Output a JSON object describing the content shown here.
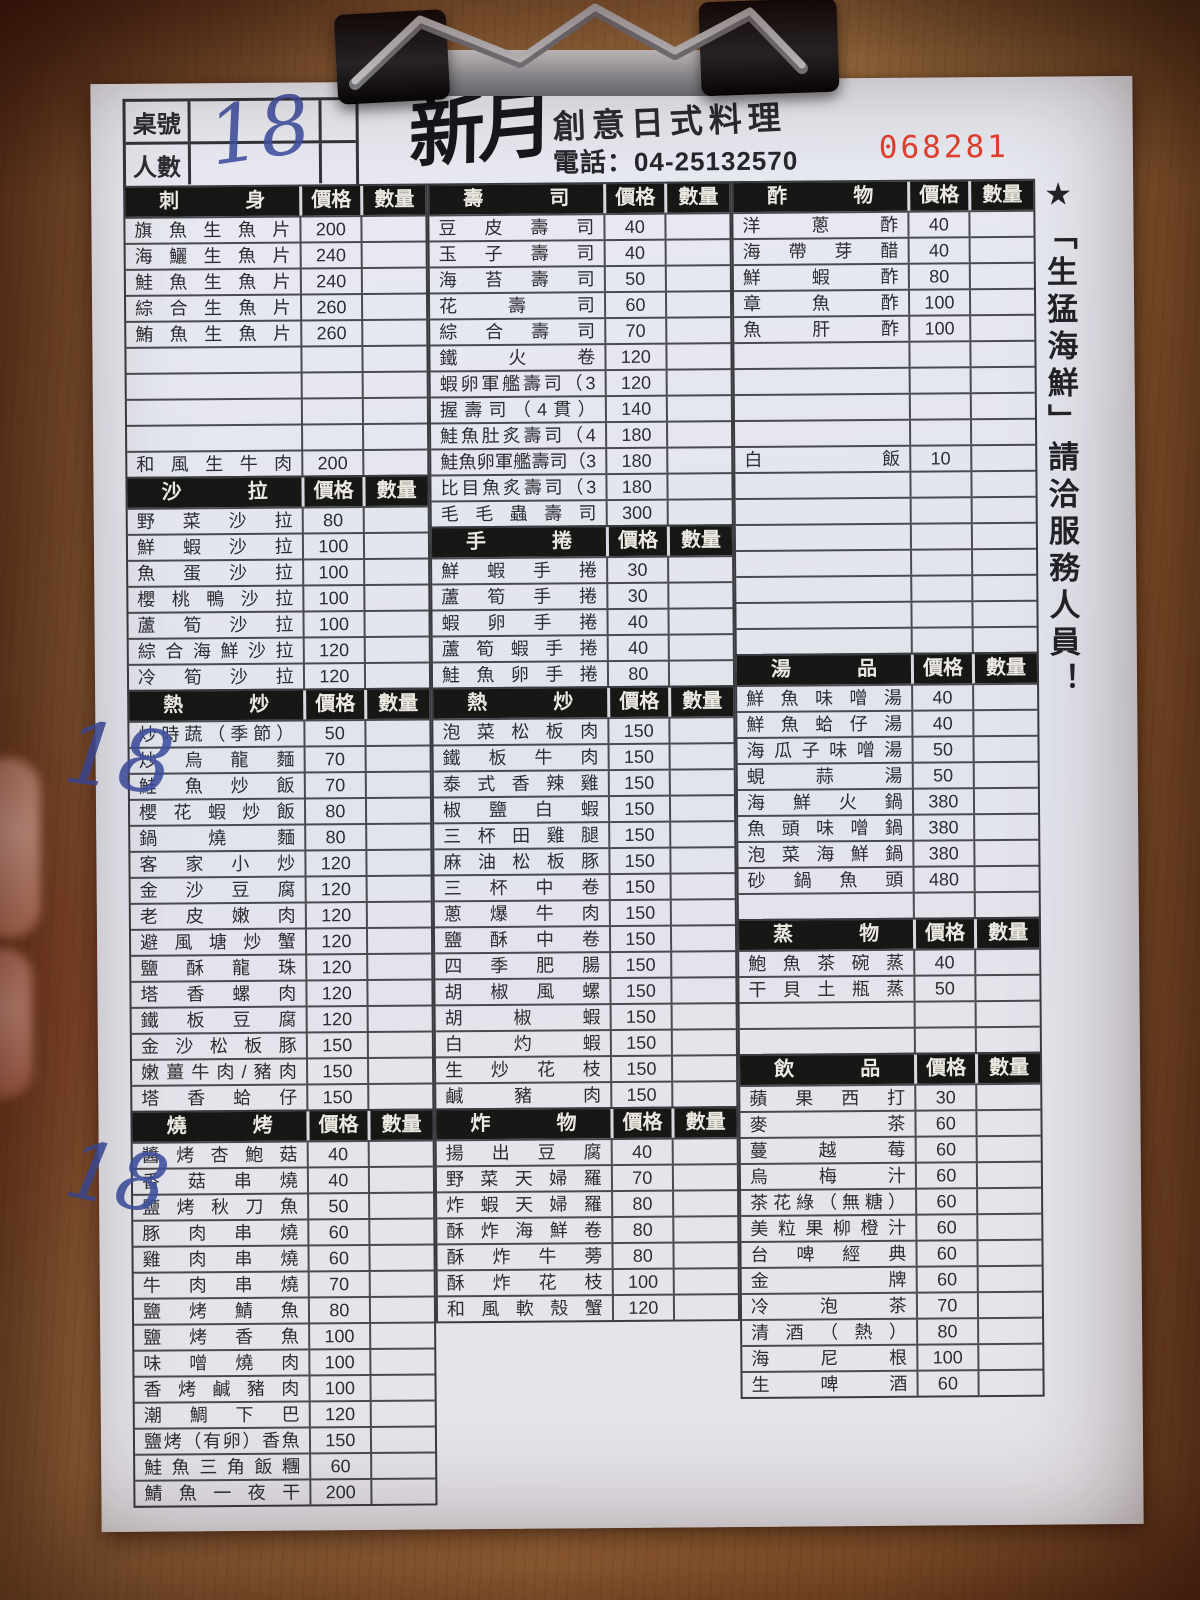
{
  "header": {
    "table_no_label": "桌號",
    "people_label": "人數",
    "handwritten_table_no": "18",
    "brand": "新月",
    "brand_subtitle": "創意日式料理",
    "phone": "電話：04-25132570",
    "serial": "068281"
  },
  "side_note": "★「生猛海鮮」請洽服務人員！",
  "margin_notes": [
    "18",
    "18"
  ],
  "menu": {
    "price_label": "價格",
    "qty_label": "數量",
    "columns": [
      {
        "sections": [
          {
            "title": "刺身",
            "items": [
              {
                "name": "旗魚生魚片",
                "price": "200"
              },
              {
                "name": "海鱺生魚片",
                "price": "240"
              },
              {
                "name": "鮭魚生魚片",
                "price": "240"
              },
              {
                "name": "綜合生魚片",
                "price": "260"
              },
              {
                "name": "鮪魚生魚片",
                "price": "260"
              },
              {
                "name": "",
                "price": ""
              },
              {
                "name": "",
                "price": ""
              },
              {
                "name": "",
                "price": ""
              },
              {
                "name": "",
                "price": ""
              },
              {
                "name": "和風生牛肉",
                "price": "200"
              }
            ]
          },
          {
            "title": "沙拉",
            "items": [
              {
                "name": "野菜沙拉",
                "price": "80"
              },
              {
                "name": "鮮蝦沙拉",
                "price": "100"
              },
              {
                "name": "魚蛋沙拉",
                "price": "100"
              },
              {
                "name": "櫻桃鴨沙拉",
                "price": "100"
              },
              {
                "name": "蘆筍沙拉",
                "price": "100"
              },
              {
                "name": "綜合海鮮沙拉",
                "price": "120"
              },
              {
                "name": "冷筍沙拉",
                "price": "120"
              }
            ]
          },
          {
            "title": "熱炒",
            "items": [
              {
                "name": "炒時蔬（季節）",
                "price": "50"
              },
              {
                "name": "炒烏龍麵",
                "price": "70"
              },
              {
                "name": "鮭魚炒飯",
                "price": "70"
              },
              {
                "name": "櫻花蝦炒飯",
                "price": "80"
              },
              {
                "name": "鍋燒麵",
                "price": "80"
              },
              {
                "name": "客家小炒",
                "price": "120"
              },
              {
                "name": "金沙豆腐",
                "price": "120"
              },
              {
                "name": "老皮嫩肉",
                "price": "120"
              },
              {
                "name": "避風塘炒蟹",
                "price": "120"
              },
              {
                "name": "鹽酥龍珠",
                "price": "120"
              },
              {
                "name": "塔香螺肉",
                "price": "120"
              },
              {
                "name": "鐵板豆腐",
                "price": "120"
              },
              {
                "name": "金沙松板豚",
                "price": "150"
              },
              {
                "name": "嫩薑牛肉/豬肉",
                "price": "150"
              },
              {
                "name": "塔香蛤仔",
                "price": "150"
              }
            ]
          },
          {
            "title": "燒烤",
            "items": [
              {
                "name": "醬烤杏鮑菇",
                "price": "40"
              },
              {
                "name": "香菇串燒",
                "price": "40"
              },
              {
                "name": "鹽烤秋刀魚",
                "price": "50"
              },
              {
                "name": "豚肉串燒",
                "price": "60"
              },
              {
                "name": "雞肉串燒",
                "price": "60"
              },
              {
                "name": "牛肉串燒",
                "price": "70"
              },
              {
                "name": "鹽烤鯖魚",
                "price": "80"
              },
              {
                "name": "鹽烤香魚",
                "price": "100"
              },
              {
                "name": "味噌燒肉",
                "price": "100"
              },
              {
                "name": "香烤鹹豬肉",
                "price": "100"
              },
              {
                "name": "潮鯛下巴",
                "price": "120"
              },
              {
                "name": "鹽烤（有卵）香魚",
                "price": "150"
              },
              {
                "name": "鮭魚三角飯糰",
                "price": "60"
              },
              {
                "name": "鯖魚一夜干",
                "price": "200"
              }
            ]
          }
        ]
      },
      {
        "sections": [
          {
            "title": "壽司",
            "items": [
              {
                "name": "豆皮壽司",
                "price": "40"
              },
              {
                "name": "玉子壽司",
                "price": "40"
              },
              {
                "name": "海苔壽司",
                "price": "50"
              },
              {
                "name": "花壽司",
                "price": "60"
              },
              {
                "name": "綜合壽司",
                "price": "70"
              },
              {
                "name": "鐵火卷",
                "price": "120"
              },
              {
                "name": "蝦卵軍艦壽司（3貫）",
                "price": "120"
              },
              {
                "name": "握壽司（4貫）",
                "price": "140"
              },
              {
                "name": "鮭魚肚炙壽司（4貫）",
                "price": "180"
              },
              {
                "name": "鮭魚卵軍艦壽司（3貫）",
                "price": "180"
              },
              {
                "name": "比目魚炙壽司（3貫）",
                "price": "180"
              },
              {
                "name": "毛毛蟲壽司",
                "price": "300"
              }
            ]
          },
          {
            "title": "手捲",
            "items": [
              {
                "name": "鮮蝦手捲",
                "price": "30"
              },
              {
                "name": "蘆筍手捲",
                "price": "30"
              },
              {
                "name": "蝦卵手捲",
                "price": "40"
              },
              {
                "name": "蘆筍蝦手捲",
                "price": "40"
              },
              {
                "name": "鮭魚卵手捲",
                "price": "80"
              }
            ]
          },
          {
            "title": "熱炒",
            "items": [
              {
                "name": "泡菜松板肉",
                "price": "150"
              },
              {
                "name": "鐵板牛肉",
                "price": "150"
              },
              {
                "name": "泰式香辣雞",
                "price": "150"
              },
              {
                "name": "椒鹽白蝦",
                "price": "150"
              },
              {
                "name": "三杯田雞腿",
                "price": "150"
              },
              {
                "name": "麻油松板豚",
                "price": "150"
              },
              {
                "name": "三杯中卷",
                "price": "150"
              },
              {
                "name": "蔥爆牛肉",
                "price": "150"
              },
              {
                "name": "鹽酥中卷",
                "price": "150"
              },
              {
                "name": "四季肥腸",
                "price": "150"
              },
              {
                "name": "胡椒風螺",
                "price": "150"
              },
              {
                "name": "胡椒蝦",
                "price": "150"
              },
              {
                "name": "白灼蝦",
                "price": "150"
              },
              {
                "name": "生炒花枝",
                "price": "150"
              },
              {
                "name": "鹹豬肉",
                "price": "150"
              }
            ]
          },
          {
            "title": "炸物",
            "items": [
              {
                "name": "揚出豆腐",
                "price": "40"
              },
              {
                "name": "野菜天婦羅",
                "price": "70"
              },
              {
                "name": "炸蝦天婦羅",
                "price": "80"
              },
              {
                "name": "酥炸海鮮卷",
                "price": "80"
              },
              {
                "name": "酥炸牛蒡",
                "price": "80"
              },
              {
                "name": "酥炸花枝",
                "price": "100"
              },
              {
                "name": "和風軟殼蟹",
                "price": "120"
              }
            ]
          }
        ]
      },
      {
        "sections": [
          {
            "title": "酢物",
            "items": [
              {
                "name": "洋蔥酢",
                "price": "40"
              },
              {
                "name": "海帶芽醋",
                "price": "40"
              },
              {
                "name": "鮮蝦酢",
                "price": "80"
              },
              {
                "name": "章魚酢",
                "price": "100"
              },
              {
                "name": "魚肝酢",
                "price": "100"
              },
              {
                "name": "",
                "price": ""
              },
              {
                "name": "",
                "price": ""
              },
              {
                "name": "",
                "price": ""
              },
              {
                "name": "",
                "price": ""
              },
              {
                "name": "白飯",
                "price": "10"
              },
              {
                "name": "",
                "price": ""
              },
              {
                "name": "",
                "price": ""
              },
              {
                "name": "",
                "price": ""
              },
              {
                "name": "",
                "price": ""
              },
              {
                "name": "",
                "price": ""
              },
              {
                "name": "",
                "price": ""
              },
              {
                "name": "",
                "price": ""
              }
            ]
          },
          {
            "title": "湯品",
            "items": [
              {
                "name": "鮮魚味噌湯",
                "price": "40"
              },
              {
                "name": "鮮魚蛤仔湯",
                "price": "40"
              },
              {
                "name": "海瓜子味噌湯",
                "price": "50"
              },
              {
                "name": "蜆蒜湯",
                "price": "50"
              },
              {
                "name": "海鮮火鍋",
                "price": "380"
              },
              {
                "name": "魚頭味噌鍋",
                "price": "380"
              },
              {
                "name": "泡菜海鮮鍋",
                "price": "380"
              },
              {
                "name": "砂鍋魚頭",
                "price": "480"
              },
              {
                "name": "",
                "price": ""
              }
            ]
          },
          {
            "title": "蒸物",
            "items": [
              {
                "name": "鮑魚茶碗蒸",
                "price": "40"
              },
              {
                "name": "干貝土瓶蒸",
                "price": "50"
              },
              {
                "name": "",
                "price": ""
              },
              {
                "name": "",
                "price": ""
              }
            ]
          },
          {
            "title": "飲品",
            "items": [
              {
                "name": "蘋果西打",
                "price": "30"
              },
              {
                "name": "麥茶",
                "price": "60"
              },
              {
                "name": "蔓越莓",
                "price": "60"
              },
              {
                "name": "烏梅汁",
                "price": "60"
              },
              {
                "name": "茶花綠（無糖）",
                "price": "60"
              },
              {
                "name": "美粒果柳橙汁",
                "price": "60"
              },
              {
                "name": "台啤經典",
                "price": "60"
              },
              {
                "name": "金牌",
                "price": "60"
              },
              {
                "name": "冷泡茶",
                "price": "70"
              },
              {
                "name": "清酒（熱）",
                "price": "80"
              },
              {
                "name": "海尼根",
                "price": "100"
              },
              {
                "name": "生啤酒",
                "price": "60"
              }
            ]
          }
        ]
      }
    ]
  }
}
